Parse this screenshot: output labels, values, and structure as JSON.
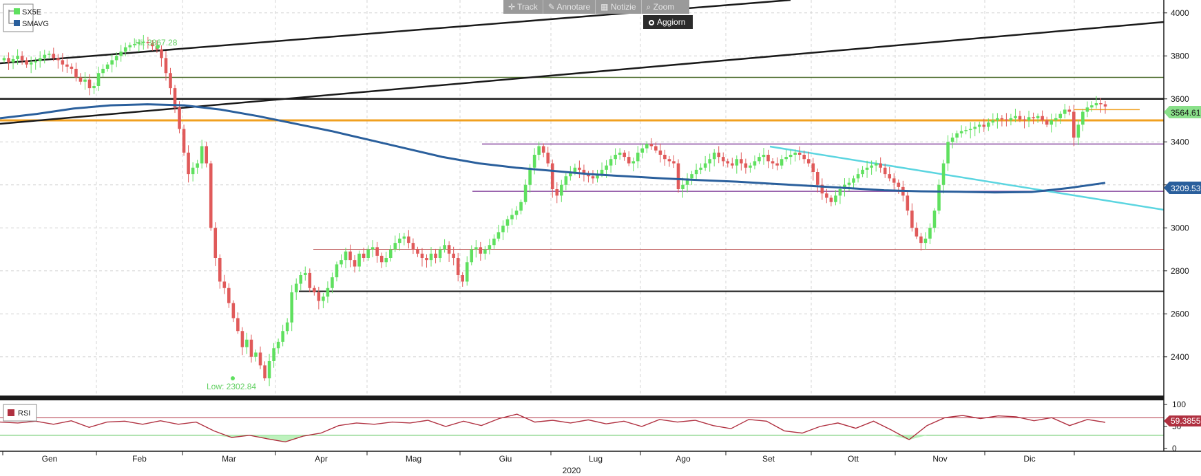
{
  "toolbar": {
    "track": "Track",
    "annotate": "Annotare",
    "news": "Notizie",
    "zoom": "Zoom",
    "update": "Aggiorn"
  },
  "legend": {
    "series1": "SX5E",
    "series2": "SMAVG",
    "rsi": "RSI"
  },
  "colors": {
    "up": "#5fe05f",
    "down": "#e05a5a",
    "sma": "#2a5f9c",
    "trend_cyan": "#5bd5e0",
    "orange": "#f0a020",
    "purple": "#8a4aa0",
    "rsi": "#b03040"
  },
  "annotations": {
    "hi": "Hi: 3867.28",
    "low": "Low: 2302.84",
    "last_price": "3564.61",
    "last_sma": "3209.53",
    "last_rsi": "59.3855"
  },
  "x_axis": {
    "months": [
      "Gen",
      "Feb",
      "Mar",
      "Apr",
      "Mag",
      "Giu",
      "Lug",
      "Ago",
      "Set",
      "Ott",
      "Nov",
      "Dic"
    ],
    "year": "2020"
  },
  "chart_data": {
    "type": "candlestick",
    "x_unit": "trading day index (2020)",
    "y_ticks": [
      2400,
      2600,
      2800,
      3000,
      3200,
      3400,
      3600,
      3800,
      4000
    ],
    "ylim": [
      2220,
      4060
    ],
    "rsi_ticks": [
      0,
      50,
      100
    ],
    "closes": [
      3790,
      3770,
      3785,
      3800,
      3780,
      3760,
      3770,
      3775,
      3790,
      3805,
      3810,
      3790,
      3780,
      3760,
      3750,
      3740,
      3700,
      3680,
      3690,
      3650,
      3660,
      3720,
      3740,
      3760,
      3780,
      3800,
      3820,
      3840,
      3850,
      3855,
      3860,
      3865,
      3860,
      3845,
      3830,
      3790,
      3720,
      3650,
      3560,
      3460,
      3350,
      3250,
      3280,
      3300,
      3380,
      3300,
      3000,
      2860,
      2750,
      2720,
      2650,
      2580,
      2520,
      2445,
      2480,
      2400,
      2420,
      2360,
      2300,
      2380,
      2440,
      2470,
      2520,
      2560,
      2700,
      2740,
      2780,
      2790,
      2720,
      2700,
      2660,
      2680,
      2720,
      2770,
      2830,
      2850,
      2890,
      2850,
      2820,
      2880,
      2860,
      2900,
      2910,
      2870,
      2840,
      2860,
      2900,
      2930,
      2950,
      2960,
      2930,
      2900,
      2880,
      2860,
      2850,
      2880,
      2860,
      2900,
      2920,
      2880,
      2860,
      2780,
      2750,
      2840,
      2900,
      2910,
      2880,
      2900,
      2920,
      2950,
      2980,
      3010,
      3040,
      3060,
      3080,
      3120,
      3200,
      3280,
      3340,
      3380,
      3350,
      3300,
      3180,
      3150,
      3200,
      3240,
      3260,
      3280,
      3270,
      3250,
      3240,
      3230,
      3250,
      3270,
      3290,
      3320,
      3340,
      3350,
      3330,
      3300,
      3310,
      3350,
      3370,
      3390,
      3380,
      3360,
      3340,
      3320,
      3310,
      3300,
      3180,
      3200,
      3230,
      3250,
      3270,
      3280,
      3300,
      3320,
      3350,
      3330,
      3310,
      3300,
      3290,
      3320,
      3300,
      3280,
      3290,
      3310,
      3330,
      3340,
      3310,
      3300,
      3290,
      3320,
      3330,
      3340,
      3350,
      3340,
      3320,
      3300,
      3260,
      3200,
      3160,
      3140,
      3120,
      3150,
      3180,
      3200,
      3210,
      3230,
      3250,
      3270,
      3280,
      3290,
      3300,
      3280,
      3250,
      3230,
      3210,
      3190,
      3150,
      3080,
      3000,
      2960,
      2930,
      2950,
      3000,
      3080,
      3200,
      3300,
      3400,
      3420,
      3440,
      3450,
      3455,
      3460,
      3470,
      3480,
      3470,
      3490,
      3500,
      3510,
      3505,
      3500,
      3510,
      3520,
      3505,
      3500,
      3515,
      3510,
      3520,
      3500,
      3480,
      3500,
      3510,
      3530,
      3550,
      3540,
      3420,
      3480,
      3540,
      3560,
      3570,
      3580,
      3575,
      3564.61
    ],
    "sma200": [
      3510,
      3530,
      3555,
      3570,
      3575,
      3570,
      3550,
      3520,
      3485,
      3450,
      3410,
      3370,
      3330,
      3300,
      3280,
      3265,
      3250,
      3240,
      3230,
      3222,
      3215,
      3205,
      3195,
      3185,
      3175,
      3170,
      3168,
      3165,
      3167,
      3185,
      3209.53
    ],
    "rsi": [
      60,
      58,
      62,
      55,
      63,
      48,
      60,
      62,
      55,
      63,
      55,
      60,
      40,
      25,
      30,
      22,
      15,
      28,
      35,
      52,
      58,
      55,
      60,
      58,
      64,
      50,
      62,
      52,
      68,
      78,
      60,
      64,
      58,
      65,
      56,
      62,
      50,
      66,
      60,
      64,
      52,
      45,
      66,
      62,
      40,
      35,
      50,
      58,
      46,
      62,
      42,
      20,
      52,
      70,
      75,
      68,
      74,
      72,
      63,
      70,
      52,
      66,
      59.3855
    ],
    "levels": {
      "high_line": 3700,
      "resistance_black": 3600,
      "orange_support": 3500,
      "purple_upper": 3390,
      "purple_lower": 3170,
      "red_line": 2900,
      "black_support": 2705
    }
  }
}
